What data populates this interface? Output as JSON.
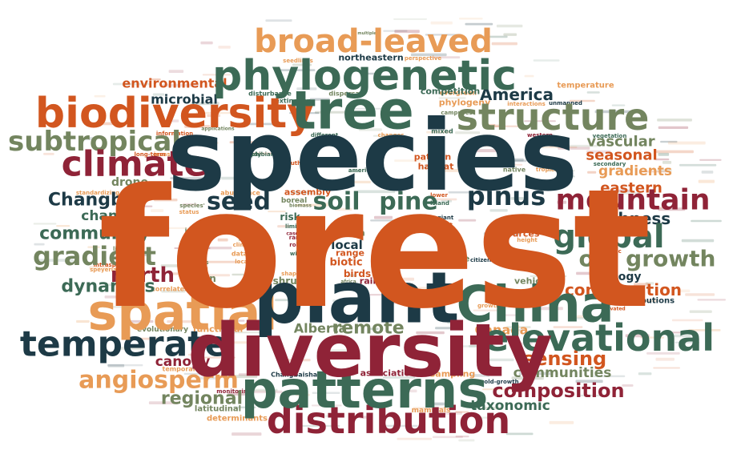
{
  "palette": {
    "navy": "#1d3a46",
    "orange": "#d2561f",
    "green": "#3c6a56",
    "sage": "#73855f",
    "maroon": "#8f2337",
    "peach": "#e89b56"
  },
  "words": [
    {
      "text": "forest",
      "color": "orange"
    },
    {
      "text": "species",
      "color": "navy"
    },
    {
      "text": "diversity",
      "color": "maroon"
    },
    {
      "text": "plant",
      "color": "navy"
    },
    {
      "text": "tree",
      "color": "green"
    },
    {
      "text": "patterns",
      "color": "green"
    },
    {
      "text": "China",
      "color": "green"
    },
    {
      "text": "spatial",
      "color": "peach"
    },
    {
      "text": "phylogenetic",
      "color": "green"
    },
    {
      "text": "biodiversity",
      "color": "orange"
    },
    {
      "text": "structure",
      "color": "sage"
    },
    {
      "text": "distribution",
      "color": "maroon"
    },
    {
      "text": "elevational",
      "color": "green"
    },
    {
      "text": "temperate",
      "color": "navy"
    },
    {
      "text": "broad-leaved",
      "color": "peach"
    },
    {
      "text": "climate",
      "color": "maroon"
    },
    {
      "text": "subtropical",
      "color": "sage"
    },
    {
      "text": "global",
      "color": "green"
    },
    {
      "text": "mountain",
      "color": "maroon"
    },
    {
      "text": "pinus",
      "color": "navy"
    },
    {
      "text": "soil",
      "color": "green"
    },
    {
      "text": "pine",
      "color": "green"
    },
    {
      "text": "seed",
      "color": "navy"
    },
    {
      "text": "Changbai",
      "color": "navy"
    },
    {
      "text": "gradient",
      "color": "sage"
    },
    {
      "text": "community",
      "color": "green"
    },
    {
      "text": "old growth",
      "color": "sage"
    },
    {
      "text": "angiosperm",
      "color": "peach"
    },
    {
      "text": "composition",
      "color": "maroon"
    },
    {
      "text": "sensing",
      "color": "orange"
    },
    {
      "text": "north",
      "color": "maroon"
    },
    {
      "text": "dynamics",
      "color": "green"
    },
    {
      "text": "remote",
      "color": "sage"
    },
    {
      "text": "richness",
      "color": "navy"
    },
    {
      "text": "America",
      "color": "navy"
    },
    {
      "text": "conservation",
      "color": "orange"
    },
    {
      "text": "regional",
      "color": "sage"
    },
    {
      "text": "eastern",
      "color": "orange"
    },
    {
      "text": "seasonal",
      "color": "orange"
    },
    {
      "text": "change",
      "color": "green"
    },
    {
      "text": "gradients",
      "color": "peach"
    },
    {
      "text": "communities",
      "color": "sage"
    },
    {
      "text": "canopy",
      "color": "maroon"
    },
    {
      "text": "taxonomic",
      "color": "green"
    },
    {
      "text": "environmental",
      "color": "orange"
    },
    {
      "text": "microbial",
      "color": "navy"
    },
    {
      "text": "vascular",
      "color": "sage"
    },
    {
      "text": "ecology",
      "color": "navy"
    },
    {
      "text": "Alberta",
      "color": "sage"
    },
    {
      "text": "Canada",
      "color": "peach"
    },
    {
      "text": "drone",
      "color": "sage"
    },
    {
      "text": "local",
      "color": "navy"
    },
    {
      "text": "risk",
      "color": "green"
    },
    {
      "text": "fern",
      "color": "sage"
    },
    {
      "text": "life",
      "color": "sage"
    },
    {
      "text": "aerial",
      "color": "orange"
    },
    {
      "text": "biotic",
      "color": "orange"
    },
    {
      "text": "birds",
      "color": "orange"
    },
    {
      "text": "range",
      "color": "orange"
    },
    {
      "text": "size",
      "color": "sage"
    },
    {
      "text": "future",
      "color": "sage"
    },
    {
      "text": "urban",
      "color": "sage"
    },
    {
      "text": "shrub",
      "color": "sage"
    },
    {
      "text": "rain",
      "color": "maroon"
    },
    {
      "text": "assembly",
      "color": "orange"
    },
    {
      "text": "habitat",
      "color": "orange"
    },
    {
      "text": "pattern",
      "color": "orange"
    },
    {
      "text": "resources",
      "color": "orange"
    },
    {
      "text": "competition",
      "color": "green"
    },
    {
      "text": "phylogeny",
      "color": "peach"
    },
    {
      "text": "associations",
      "color": "maroon"
    },
    {
      "text": "sampling",
      "color": "peach"
    },
    {
      "text": "vehicle",
      "color": "sage"
    },
    {
      "text": "distributions",
      "color": "navy"
    },
    {
      "text": "northeastern",
      "color": "navy"
    },
    {
      "text": "functional",
      "color": "peach"
    },
    {
      "text": "scales",
      "color": "peach"
    },
    {
      "text": "evolutionary",
      "color": "sage"
    },
    {
      "text": "latitudinal",
      "color": "sage"
    },
    {
      "text": "determinants",
      "color": "peach"
    },
    {
      "text": "temperature",
      "color": "peach"
    },
    {
      "text": "mammals",
      "color": "peach"
    },
    {
      "text": "Changbaishan",
      "color": "navy"
    },
    {
      "text": "temporal",
      "color": "peach"
    },
    {
      "text": "boreal",
      "color": "sage"
    },
    {
      "text": "evergreen",
      "color": "peach"
    },
    {
      "text": "monitoring",
      "color": "maroon"
    },
    {
      "text": "abundance",
      "color": "peach"
    },
    {
      "text": "correlates",
      "color": "peach"
    },
    {
      "text": "survival",
      "color": "peach"
    },
    {
      "text": "dataset",
      "color": "peach"
    },
    {
      "text": "tropical",
      "color": "peach"
    },
    {
      "text": "height",
      "color": "peach"
    },
    {
      "text": "invasive",
      "color": "peach"
    },
    {
      "text": "information",
      "color": "orange"
    },
    {
      "text": "disturbance",
      "color": "green"
    },
    {
      "text": "extinction",
      "color": "green"
    },
    {
      "text": "dispersal",
      "color": "sage"
    },
    {
      "text": "seedlings",
      "color": "peach"
    },
    {
      "text": "interactions",
      "color": "peach"
    },
    {
      "text": "unmanned",
      "color": "navy"
    },
    {
      "text": "vegetation",
      "color": "green"
    },
    {
      "text": "secondary",
      "color": "green"
    },
    {
      "text": "native",
      "color": "sage"
    },
    {
      "text": "western",
      "color": "maroon"
    },
    {
      "text": "different",
      "color": "green"
    },
    {
      "text": "mixed",
      "color": "green"
    },
    {
      "text": "island",
      "color": "green"
    },
    {
      "text": "giant",
      "color": "navy"
    },
    {
      "text": "american",
      "color": "green"
    },
    {
      "text": "long-term",
      "color": "orange"
    },
    {
      "text": "amphibian",
      "color": "green"
    },
    {
      "text": "status",
      "color": "peach"
    },
    {
      "text": "impact",
      "color": "sage"
    },
    {
      "text": "seeing",
      "color": "navy"
    },
    {
      "text": "woody",
      "color": "navy"
    },
    {
      "text": "matters",
      "color": "sage"
    },
    {
      "text": "limitation",
      "color": "sage"
    },
    {
      "text": "species'",
      "color": "sage"
    },
    {
      "text": "study",
      "color": "green"
    },
    {
      "text": "genera",
      "color": "sage"
    },
    {
      "text": "climatic",
      "color": "peach"
    },
    {
      "text": "locally",
      "color": "peach"
    },
    {
      "text": "biomass",
      "color": "sage"
    },
    {
      "text": "limits",
      "color": "green"
    },
    {
      "text": "rare",
      "color": "maroon"
    },
    {
      "text": "role",
      "color": "maroon"
    },
    {
      "text": "wild",
      "color": "green"
    },
    {
      "text": "shape",
      "color": "peach"
    },
    {
      "text": "case",
      "color": "maroon"
    },
    {
      "text": "bird",
      "color": "peach"
    },
    {
      "text": "citizen",
      "color": "navy"
    },
    {
      "text": "history",
      "color": "sage"
    },
    {
      "text": "growth",
      "color": "peach"
    },
    {
      "text": "intraspecific",
      "color": "orange"
    },
    {
      "text": "speyeria",
      "color": "peach"
    },
    {
      "text": "standardizing",
      "color": "peach"
    },
    {
      "text": "campuses",
      "color": "sage"
    },
    {
      "text": "south",
      "color": "orange"
    },
    {
      "text": "perspective",
      "color": "peach"
    },
    {
      "text": "multiple",
      "color": "sage"
    },
    {
      "text": "lower",
      "color": "orange"
    },
    {
      "text": "test",
      "color": "orange"
    },
    {
      "text": "changes",
      "color": "peach"
    },
    {
      "text": "scientific",
      "color": "orange"
    },
    {
      "text": "old-growth",
      "color": "navy"
    },
    {
      "text": "africa",
      "color": "sage"
    },
    {
      "text": "applications",
      "color": "sage"
    },
    {
      "text": "elevated",
      "color": "orange"
    }
  ]
}
